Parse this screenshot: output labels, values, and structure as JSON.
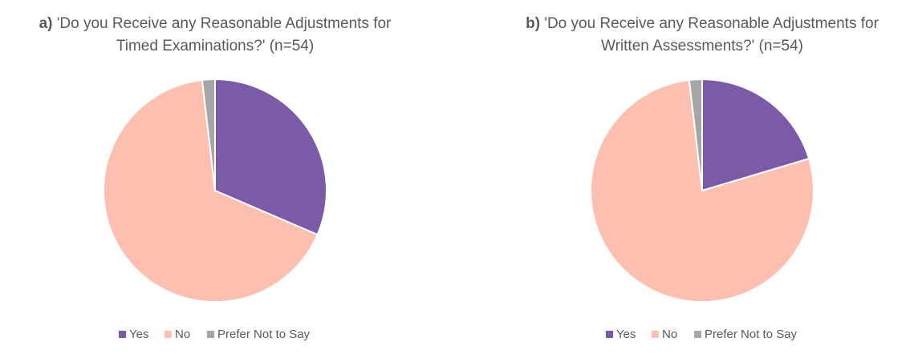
{
  "chart_data": [
    {
      "type": "pie",
      "title_prefix": "a)",
      "title_lines": [
        "'Do you Receive any Reasonable Adjustments for",
        "Timed Examinations?' (n=54)"
      ],
      "categories": [
        "Yes",
        "No",
        "Prefer Not to Say"
      ],
      "values": [
        17,
        36,
        1
      ],
      "colors": [
        "#7b5ba8",
        "#fdbfb0",
        "#a6a6a6"
      ]
    },
    {
      "type": "pie",
      "title_prefix": "b)",
      "title_lines": [
        "'Do you Receive any Reasonable Adjustments for",
        "Written Assessments?' (n=54)"
      ],
      "categories": [
        "Yes",
        "No",
        "Prefer Not to Say"
      ],
      "values": [
        11,
        42,
        1
      ],
      "colors": [
        "#7b5ba8",
        "#fdbfb0",
        "#a6a6a6"
      ]
    }
  ]
}
